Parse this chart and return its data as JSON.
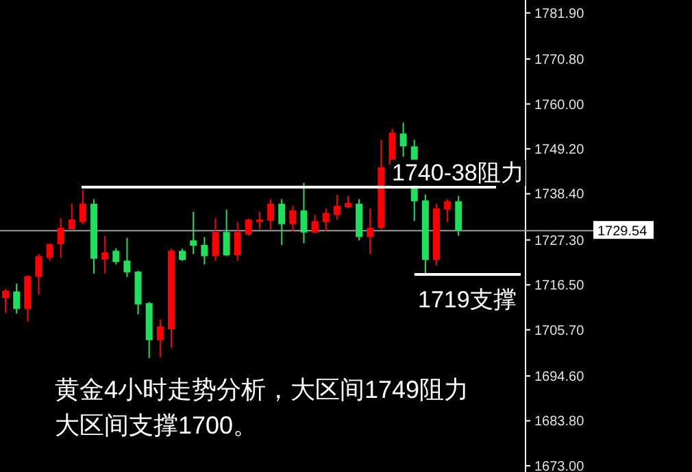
{
  "chart_data": {
    "type": "candlestick",
    "categories": [
      null,
      null,
      null,
      null,
      null,
      null,
      null,
      null,
      null,
      null,
      null,
      null,
      null,
      null,
      null,
      null,
      null,
      null,
      null,
      null,
      null,
      null,
      null,
      null,
      null,
      null,
      null,
      null,
      null,
      null,
      null,
      null,
      null,
      null,
      null,
      null,
      null,
      null,
      null,
      null,
      null,
      null
    ],
    "ohlc": [
      [
        1713.3,
        1715.5,
        1709.7,
        1715.1
      ],
      [
        1714.9,
        1716.8,
        1709.6,
        1710.7
      ],
      [
        1710.7,
        1718.8,
        1707.7,
        1718.6
      ],
      [
        1718.4,
        1723.9,
        1714.2,
        1723.4
      ],
      [
        1723.0,
        1726.5,
        1722.3,
        1726.3
      ],
      [
        1726.3,
        1732.5,
        1723.0,
        1730.2
      ],
      [
        1729.9,
        1736.0,
        1729.8,
        1732.2
      ],
      [
        1731.6,
        1739.3,
        1731.1,
        1736.0
      ],
      [
        1736.0,
        1737.1,
        1719.2,
        1722.8
      ],
      [
        1722.6,
        1728.3,
        1719.3,
        1724.3
      ],
      [
        1724.7,
        1725.3,
        1721.4,
        1722.0
      ],
      [
        1722.3,
        1727.8,
        1718.4,
        1719.5
      ],
      [
        1719.7,
        1719.9,
        1709.4,
        1711.8
      ],
      [
        1712.1,
        1712.4,
        1698.9,
        1703.2
      ],
      [
        1703.2,
        1708.2,
        1699.1,
        1706.5
      ],
      [
        1705.8,
        1725.2,
        1701.4,
        1724.7
      ],
      [
        1724.7,
        1725.2,
        1722.3,
        1722.5
      ],
      [
        1727.2,
        1734.1,
        1723.9,
        1725.9
      ],
      [
        1726.1,
        1728.0,
        1721.4,
        1723.4
      ],
      [
        1723.4,
        1732.5,
        1722.3,
        1729.2
      ],
      [
        1729.2,
        1734.6,
        1723.4,
        1723.6
      ],
      [
        1723.6,
        1731.6,
        1722.3,
        1729.2
      ],
      [
        1728.6,
        1732.4,
        1728.3,
        1732.2
      ],
      [
        1731.6,
        1734.1,
        1729.9,
        1732.2
      ],
      [
        1731.9,
        1737.1,
        1729.8,
        1736.0
      ],
      [
        1736.0,
        1737.1,
        1726.1,
        1731.1
      ],
      [
        1731.1,
        1735.5,
        1729.4,
        1734.4
      ],
      [
        1734.4,
        1741.0,
        1726.5,
        1729.1
      ],
      [
        1729.1,
        1733.3,
        1728.9,
        1731.8
      ],
      [
        1731.6,
        1734.9,
        1729.4,
        1733.8
      ],
      [
        1733.3,
        1738.2,
        1732.2,
        1735.5
      ],
      [
        1735.2,
        1737.9,
        1734.9,
        1736.2
      ],
      [
        1736.0,
        1737.1,
        1727.2,
        1728.0
      ],
      [
        1728.0,
        1734.9,
        1723.9,
        1730.2
      ],
      [
        1730.2,
        1751.4,
        1729.9,
        1744.8
      ],
      [
        1745.4,
        1754.0,
        1745.1,
        1753.1
      ],
      [
        1752.9,
        1755.5,
        1747.3,
        1749.8
      ],
      [
        1749.8,
        1751.4,
        1731.9,
        1736.6
      ],
      [
        1736.8,
        1738.2,
        1719.0,
        1722.5
      ],
      [
        1722.5,
        1736.0,
        1721.2,
        1734.9
      ],
      [
        1734.6,
        1737.1,
        1731.6,
        1736.6
      ],
      [
        1736.6,
        1737.9,
        1728.3,
        1729.54
      ]
    ],
    "colors": [
      "#ff0000",
      "#1ee05a",
      "#ff0000",
      "#ff0000",
      "#ff0000",
      "#ff0000",
      "#ff0000",
      "#ff0000",
      "#1ee05a",
      "#ff0000",
      "#1ee05a",
      "#1ee05a",
      "#1ee05a",
      "#1ee05a",
      "#ff0000",
      "#ff0000",
      "#1ee05a",
      "#1ee05a",
      "#1ee05a",
      "#ff0000",
      "#1ee05a",
      "#ff0000",
      "#ff0000",
      "#ff0000",
      "#ff0000",
      "#1ee05a",
      "#ff0000",
      "#1ee05a",
      "#ff0000",
      "#ff0000",
      "#ff0000",
      "#ff0000",
      "#1ee05a",
      "#ff0000",
      "#ff0000",
      "#ff0000",
      "#1ee05a",
      "#1ee05a",
      "#1ee05a",
      "#ff0000",
      "#ff0000",
      "#1ee05a"
    ],
    "ylim": [
      1671.5,
      1785.0
    ],
    "yticks": [
      {
        "value": 1673.0,
        "label": "1673.00"
      },
      {
        "value": 1683.8,
        "label": "1683.80"
      },
      {
        "value": 1694.6,
        "label": "1694.60"
      },
      {
        "value": 1705.7,
        "label": "1705.70"
      },
      {
        "value": 1716.5,
        "label": "1716.50"
      },
      {
        "value": 1727.3,
        "label": "1727.30"
      },
      {
        "value": 1738.4,
        "label": "1738.40"
      },
      {
        "value": 1749.2,
        "label": "1749.20"
      },
      {
        "value": 1760.0,
        "label": "1760.00"
      },
      {
        "value": 1770.8,
        "label": "1770.80"
      },
      {
        "value": 1781.9,
        "label": "1781.90"
      }
    ],
    "tick_labels": "y",
    "ref_lines": [
      {
        "axis": "y",
        "value": 1740,
        "label": "1740-38阻力",
        "color": "#ffffff"
      },
      {
        "axis": "y",
        "value": 1719,
        "label": "1719支撑",
        "color": "#ffffff"
      },
      {
        "axis": "y",
        "value": 1729.54,
        "label": "1729.54",
        "color": "#9a9a9a"
      }
    ],
    "annotations": [
      "黄金4小时走势分析，大区间1749阻力",
      "大区间支撑1700。"
    ]
  }
}
